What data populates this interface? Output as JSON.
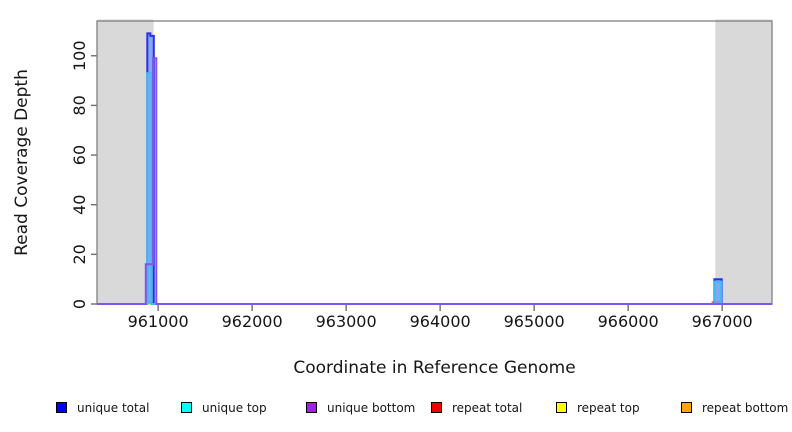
{
  "chart_data": {
    "type": "line",
    "title": "",
    "xlabel": "Coordinate in Reference Genome",
    "ylabel": "Read Coverage Depth",
    "xlim": [
      960350,
      967530
    ],
    "ylim": [
      0,
      114
    ],
    "x_ticks": [
      961000,
      962000,
      963000,
      964000,
      965000,
      966000,
      967000
    ],
    "y_ticks": [
      0,
      20,
      40,
      60,
      80,
      100
    ],
    "grid": false,
    "legend_position": "bottom",
    "shaded_regions": [
      {
        "name": "masked-region-left",
        "x0": 960350,
        "x1": 960952,
        "color": "#d9d9d9"
      },
      {
        "name": "masked-region-right",
        "x0": 966927,
        "x1": 967530,
        "color": "#d9d9d9"
      }
    ],
    "series": [
      {
        "key": "repeat-total",
        "name": "repeat total",
        "stroke": "#ee7777",
        "width": 2,
        "points": [
          [
            960350,
            0
          ],
          [
            966898,
            0
          ],
          [
            966898,
            0.8
          ],
          [
            966968,
            0.8
          ],
          [
            966968,
            0
          ],
          [
            967530,
            0
          ]
        ]
      },
      {
        "key": "repeat-top",
        "name": "repeat top",
        "stroke": "#ffff00",
        "width": 2,
        "points": [
          [
            960350,
            0
          ],
          [
            967530,
            0
          ]
        ]
      },
      {
        "key": "repeat-bottom",
        "name": "repeat bottom",
        "stroke": "#ffa500",
        "width": 2,
        "points": [
          [
            960350,
            0
          ],
          [
            960880,
            0
          ],
          [
            960880,
            0.9
          ],
          [
            960950,
            0.9
          ],
          [
            960950,
            0
          ],
          [
            967530,
            0
          ]
        ]
      },
      {
        "key": "unique-total",
        "name": "unique total",
        "stroke": "#2c2cee",
        "width": 2,
        "fill": "rgba(110,155,245,0.8)",
        "points": [
          [
            960350,
            0
          ],
          [
            960885,
            0
          ],
          [
            960885,
            109
          ],
          [
            960917,
            109
          ],
          [
            960917,
            108
          ],
          [
            960954,
            108
          ],
          [
            960954,
            0
          ],
          [
            966917,
            0
          ],
          [
            966917,
            10
          ],
          [
            966995,
            10
          ],
          [
            966995,
            0
          ],
          [
            967530,
            0
          ]
        ]
      },
      {
        "key": "unique-top",
        "name": "unique top",
        "stroke": "#38bdf0",
        "width": 2,
        "points": [
          [
            960350,
            0
          ],
          [
            960887,
            0
          ],
          [
            960887,
            93
          ],
          [
            960930,
            93
          ],
          [
            960930,
            0
          ],
          [
            966921,
            0
          ],
          [
            966921,
            9
          ],
          [
            966991,
            9
          ],
          [
            966991,
            0
          ],
          [
            967530,
            0
          ]
        ]
      },
      {
        "key": "unique-bottom",
        "name": "unique bottom",
        "stroke": "#7d55f0",
        "width": 2,
        "points": [
          [
            960350,
            0
          ],
          [
            960869,
            0
          ],
          [
            960869,
            16
          ],
          [
            960946,
            16
          ],
          [
            960946,
            99
          ],
          [
            960981,
            99
          ],
          [
            960981,
            0
          ],
          [
            967530,
            0
          ]
        ]
      }
    ],
    "legend": [
      {
        "label": "unique total",
        "color": "#0000ff"
      },
      {
        "label": "unique top",
        "color": "#00ffff"
      },
      {
        "label": "unique bottom",
        "color": "#a020f0"
      },
      {
        "label": "repeat total",
        "color": "#ee0000"
      },
      {
        "label": "repeat top",
        "color": "#ffff00"
      },
      {
        "label": "repeat bottom",
        "color": "#ffa500"
      }
    ],
    "style": {
      "box_color": "#888888",
      "tick_color": "#6e6e6e",
      "text_color": "#161616",
      "background": "#ffffff"
    }
  }
}
